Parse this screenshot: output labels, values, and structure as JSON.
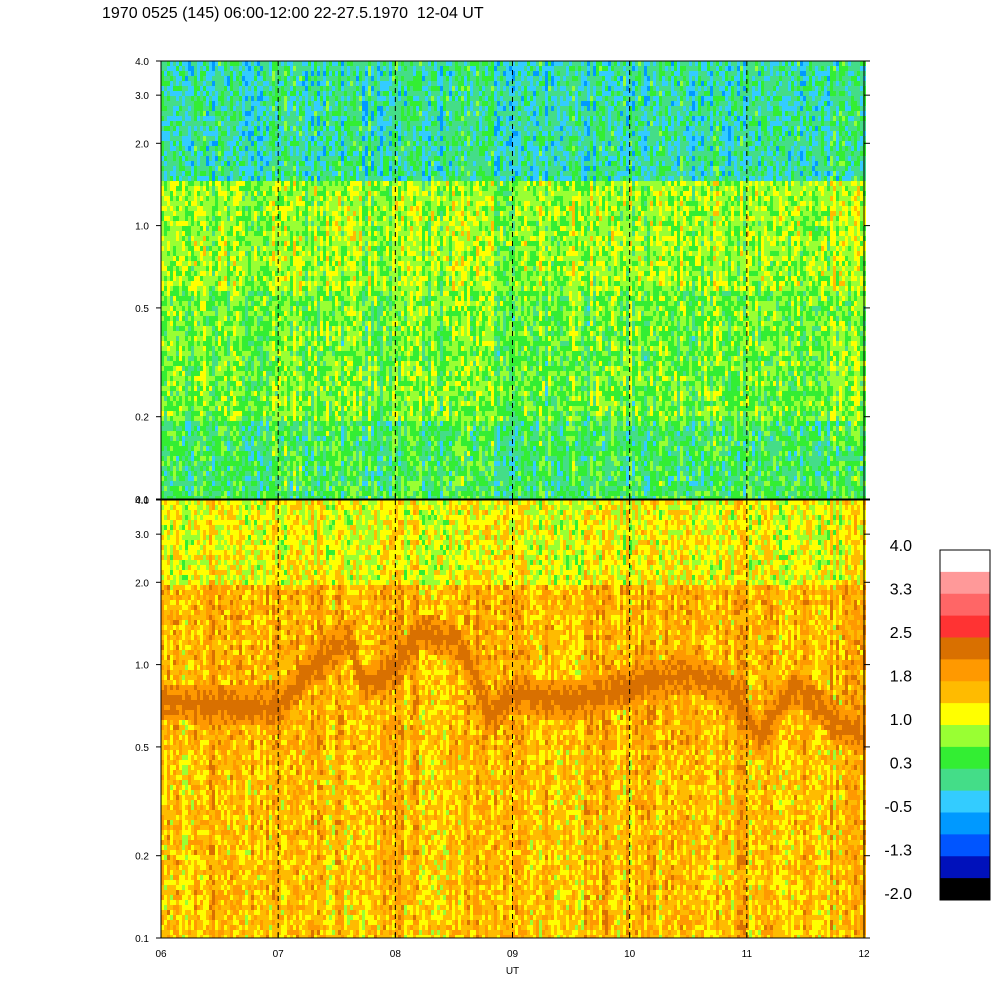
{
  "title": "1970 0525 (145) 06:00-12:00 22-27.5.1970  12-04 UT",
  "chart_data": [
    {
      "type": "heatmap",
      "panel": "upper",
      "y_scale": "log",
      "ylim": [
        0.1,
        4.0
      ],
      "y_ticks": [
        0.1,
        0.2,
        0.5,
        1.0,
        2.0,
        3.0,
        4.0
      ],
      "y_tick_labels": [
        "0.1",
        "0.2",
        "0.5",
        "1.0",
        "2.0",
        "3.0",
        "4.0"
      ],
      "x_hours": [
        6,
        7,
        8,
        9,
        10,
        11,
        12
      ],
      "x_tick_labels": [
        "06",
        "07",
        "08",
        "09",
        "10",
        "11",
        "12"
      ],
      "dominant_level_by_band": [
        {
          "from": 0.1,
          "to": 0.2,
          "level": 0.3
        },
        {
          "from": 0.2,
          "to": 0.6,
          "level": 0.6
        },
        {
          "from": 0.6,
          "to": 1.5,
          "level": 0.8
        },
        {
          "from": 1.5,
          "to": 4.0,
          "level": 0.0
        }
      ],
      "dashed_vertical_lines_hours": [
        7,
        8,
        9,
        10,
        11
      ]
    },
    {
      "type": "heatmap",
      "panel": "lower",
      "y_scale": "log",
      "ylim": [
        0.1,
        4.0
      ],
      "y_ticks": [
        0.1,
        0.2,
        0.5,
        1.0,
        2.0,
        3.0,
        4.0
      ],
      "y_tick_labels": [
        "0.1",
        "0.2",
        "0.5",
        "1.0",
        "2.0",
        "3.0",
        "4.0"
      ],
      "x_hours": [
        6,
        7,
        8,
        9,
        10,
        11,
        12
      ],
      "x_tick_labels": [
        "06",
        "07",
        "08",
        "09",
        "10",
        "11",
        "12"
      ],
      "xlabel": "UT",
      "dominant_level_by_band": [
        {
          "from": 0.1,
          "to": 0.5,
          "level": 1.6
        },
        {
          "from": 0.5,
          "to": 2.0,
          "level": 1.7
        },
        {
          "from": 2.0,
          "to": 4.0,
          "level": 1.2
        }
      ],
      "ridge": {
        "description_level": 2.3,
        "points": [
          {
            "hour": 6.0,
            "y": 0.75
          },
          {
            "hour": 6.5,
            "y": 0.72
          },
          {
            "hour": 7.0,
            "y": 0.72
          },
          {
            "hour": 7.4,
            "y": 1.1
          },
          {
            "hour": 7.6,
            "y": 1.3
          },
          {
            "hour": 7.7,
            "y": 0.85
          },
          {
            "hour": 8.0,
            "y": 1.0
          },
          {
            "hour": 8.2,
            "y": 1.35
          },
          {
            "hour": 8.5,
            "y": 1.25
          },
          {
            "hour": 8.8,
            "y": 0.65
          },
          {
            "hour": 9.0,
            "y": 0.8
          },
          {
            "hour": 9.5,
            "y": 0.75
          },
          {
            "hour": 10.0,
            "y": 0.85
          },
          {
            "hour": 10.5,
            "y": 0.95
          },
          {
            "hour": 10.8,
            "y": 0.85
          },
          {
            "hour": 11.1,
            "y": 0.55
          },
          {
            "hour": 11.4,
            "y": 0.85
          },
          {
            "hour": 11.7,
            "y": 0.65
          },
          {
            "hour": 12.0,
            "y": 0.55
          }
        ]
      },
      "dashed_vertical_lines_hours": [
        7,
        8,
        9,
        10,
        11
      ]
    }
  ],
  "colorbar": {
    "labels": [
      "4.0",
      "3.3",
      "2.5",
      "1.8",
      "1.0",
      "0.3",
      "-0.5",
      "-1.3",
      "-2.0"
    ],
    "colors_top_to_bottom": [
      "#ffffff",
      "#ff9999",
      "#ff6666",
      "#ff3333",
      "#d97000",
      "#ff9900",
      "#ffbb00",
      "#ffff00",
      "#99ff33",
      "#33ee33",
      "#44dd88",
      "#33ccff",
      "#0099ff",
      "#0055ff",
      "#0011bb",
      "#000000"
    ]
  }
}
